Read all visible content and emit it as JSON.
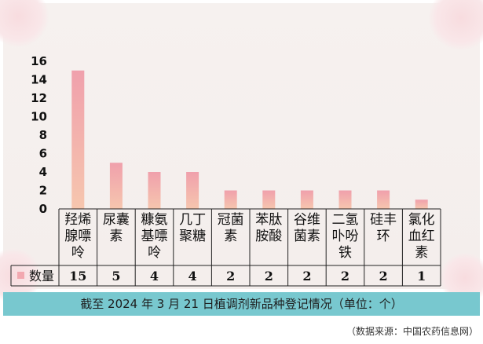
{
  "chart_data": {
    "type": "bar",
    "categories": [
      [
        "羟烯",
        "腺嘌",
        "呤"
      ],
      [
        "尿囊",
        "素"
      ],
      [
        "糠氨",
        "基嘌",
        "呤"
      ],
      [
        "几丁",
        "聚糖"
      ],
      [
        "冠菌",
        "素"
      ],
      [
        "苯肽",
        "胺酸"
      ],
      [
        "谷维",
        "菌素"
      ],
      [
        "二氢",
        "卟吩",
        "铁"
      ],
      [
        "硅丰",
        "环"
      ],
      [
        "氯化",
        "血红",
        "素"
      ]
    ],
    "series": [
      {
        "name": "数量",
        "values": [
          15,
          5,
          4,
          4,
          2,
          2,
          2,
          2,
          2,
          1
        ]
      }
    ],
    "value_labels": [
      "15",
      "5",
      "4",
      "4",
      "2",
      "2",
      "2",
      "2",
      "2",
      "1"
    ],
    "y_ticks": [
      "0",
      "2",
      "4",
      "6",
      "8",
      "10",
      "12",
      "14",
      "16"
    ],
    "ylim": [
      0,
      16
    ],
    "grid": false,
    "legend": "data table row",
    "bar_color": "#f2a8b0",
    "bar_color_top": "#f0a0ac",
    "bar_color_bottom": "#f6c6ae"
  },
  "caption": "截至 2024 年 3 月 21 日植调剂新品种登记情况（单位：个）",
  "source": "（数据来源：中国农药信息网）"
}
